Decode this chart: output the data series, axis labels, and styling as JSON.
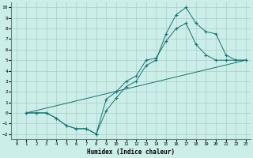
{
  "xlabel": "Humidex (Indice chaleur)",
  "background_color": "#cceee8",
  "grid_color": "#aacccc",
  "line_color": "#1a7070",
  "xlim": [
    -0.5,
    23.5
  ],
  "ylim": [
    -2.5,
    10.5
  ],
  "xticks": [
    0,
    1,
    2,
    3,
    4,
    5,
    6,
    7,
    8,
    9,
    10,
    11,
    12,
    13,
    14,
    15,
    16,
    17,
    18,
    19,
    20,
    21,
    22,
    23
  ],
  "yticks": [
    -2,
    -1,
    0,
    1,
    2,
    3,
    4,
    5,
    6,
    7,
    8,
    9,
    10
  ],
  "curve1_x": [
    1,
    2,
    3,
    4,
    5,
    6,
    7,
    8,
    9,
    10,
    11,
    12,
    13,
    14,
    15,
    16,
    17,
    18,
    19,
    20,
    21,
    22,
    23
  ],
  "curve1_y": [
    0,
    0,
    0,
    -0.5,
    -1.2,
    -1.5,
    -1.5,
    -2.0,
    0.2,
    1.4,
    2.5,
    3.0,
    4.5,
    5.0,
    7.5,
    9.3,
    10.0,
    8.5,
    7.7,
    7.5,
    5.5,
    5.0,
    5.0
  ],
  "curve2_x": [
    1,
    23
  ],
  "curve2_y": [
    0,
    5.0
  ],
  "curve3_x": [
    1,
    2,
    3,
    4,
    5,
    6,
    7,
    8,
    9,
    10,
    11,
    12,
    13,
    14,
    15,
    16,
    17,
    18,
    19,
    20,
    21,
    22,
    23
  ],
  "curve3_y": [
    0,
    0,
    0,
    -0.5,
    -1.2,
    -1.5,
    -1.5,
    -2.0,
    1.3,
    2.0,
    3.0,
    3.5,
    5.0,
    5.2,
    6.8,
    8.0,
    8.5,
    6.5,
    5.5,
    5.0,
    5.0,
    5.0,
    5.0
  ]
}
